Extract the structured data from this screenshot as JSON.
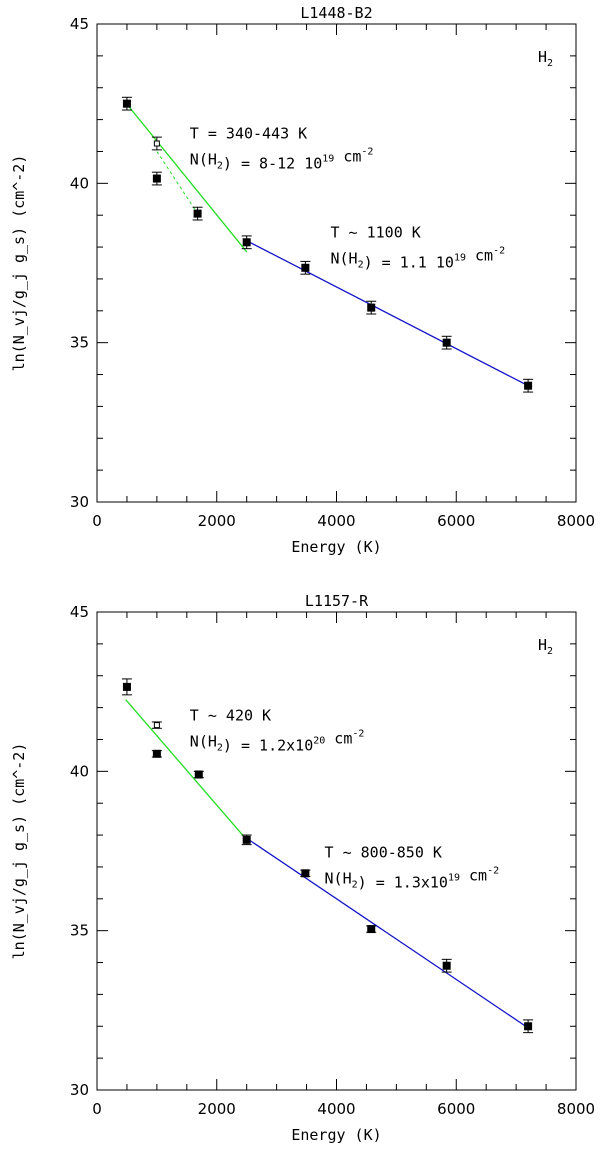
{
  "chart_data": [
    {
      "type": "scatter",
      "title": "L1448-B2",
      "xlabel": "Energy (K)",
      "ylabel": "ln(N_vj/g_j g_s) (cm^-2)",
      "xlim": [
        0,
        8000
      ],
      "ylim": [
        30,
        45
      ],
      "xticks": [
        0,
        2000,
        4000,
        6000,
        8000
      ],
      "yticks": [
        30,
        35,
        40,
        45
      ],
      "xtick_labels": [
        "0",
        "2000",
        "4000",
        "6000",
        "8000"
      ],
      "ytick_labels": [
        "30",
        "35",
        "40",
        "45"
      ],
      "species": "H",
      "species_sub": "2",
      "points": [
        {
          "x": 500,
          "y": 42.5,
          "err": 0.2,
          "filled": true
        },
        {
          "x": 1000,
          "y": 41.25,
          "err": 0.2,
          "filled": false
        },
        {
          "x": 1000,
          "y": 40.15,
          "err": 0.2,
          "filled": true
        },
        {
          "x": 1680,
          "y": 39.05,
          "err": 0.2,
          "filled": true
        },
        {
          "x": 2500,
          "y": 38.15,
          "err": 0.2,
          "filled": true
        },
        {
          "x": 3480,
          "y": 37.35,
          "err": 0.2,
          "filled": true
        },
        {
          "x": 4580,
          "y": 36.1,
          "err": 0.2,
          "filled": true
        },
        {
          "x": 5840,
          "y": 35.0,
          "err": 0.2,
          "filled": true
        },
        {
          "x": 7200,
          "y": 33.65,
          "err": 0.2,
          "filled": true
        }
      ],
      "fits": [
        {
          "color": "#22dd22",
          "dashed": false,
          "x": [
            450,
            2500
          ],
          "y": [
            42.6,
            37.85
          ]
        },
        {
          "color": "#22dd22",
          "dashed": true,
          "x": [
            1000,
            1680
          ],
          "y": [
            41.0,
            39.05
          ]
        },
        {
          "color": "#1515c8",
          "dashed": false,
          "x": [
            2500,
            7200
          ],
          "y": [
            38.2,
            33.65
          ]
        }
      ],
      "annotations": [
        {
          "lines": [
            [
              "T = 340-443 K"
            ],
            [
              "N(H",
              {
                "sub": "2"
              },
              ") = 8-12 10",
              {
                "sup": "19"
              },
              " cm",
              {
                "sup": "-2"
              }
            ]
          ],
          "x": 1550,
          "y": 41.4
        },
        {
          "lines": [
            [
              "T ~ 1100 K"
            ],
            [
              "N(H",
              {
                "sub": "2"
              },
              ") = 1.1 10",
              {
                "sup": "19"
              },
              " cm",
              {
                "sup": "-2"
              }
            ]
          ],
          "x": 3900,
          "y": 38.3
        }
      ]
    },
    {
      "type": "scatter",
      "title": "L1157-R",
      "xlabel": "Energy (K)",
      "ylabel": "ln(N_vj/g_j g_s) (cm^-2)",
      "xlim": [
        0,
        8000
      ],
      "ylim": [
        30,
        45
      ],
      "xticks": [
        0,
        2000,
        4000,
        6000,
        8000
      ],
      "yticks": [
        30,
        35,
        40,
        45
      ],
      "xtick_labels": [
        "0",
        "2000",
        "4000",
        "6000",
        "8000"
      ],
      "ytick_labels": [
        "30",
        "35",
        "40",
        "45"
      ],
      "species": "H",
      "species_sub": "2",
      "points": [
        {
          "x": 500,
          "y": 42.65,
          "err": 0.25,
          "filled": true
        },
        {
          "x": 1000,
          "y": 41.45,
          "err": 0.1,
          "filled": false
        },
        {
          "x": 1000,
          "y": 40.55,
          "err": 0.1,
          "filled": true
        },
        {
          "x": 1700,
          "y": 39.9,
          "err": 0.1,
          "filled": true
        },
        {
          "x": 2500,
          "y": 37.85,
          "err": 0.15,
          "filled": true
        },
        {
          "x": 3480,
          "y": 36.8,
          "err": 0.1,
          "filled": true
        },
        {
          "x": 4580,
          "y": 35.05,
          "err": 0.1,
          "filled": true
        },
        {
          "x": 5840,
          "y": 33.9,
          "err": 0.2,
          "filled": true
        },
        {
          "x": 7200,
          "y": 32.0,
          "err": 0.2,
          "filled": true
        }
      ],
      "fits": [
        {
          "color": "#22dd22",
          "dashed": false,
          "x": [
            480,
            2500
          ],
          "y": [
            42.25,
            37.85
          ]
        },
        {
          "color": "#1515c8",
          "dashed": false,
          "x": [
            2500,
            7200
          ],
          "y": [
            37.9,
            31.95
          ]
        }
      ],
      "annotations": [
        {
          "lines": [
            [
              "T ~ 420 K"
            ],
            [
              "N(H",
              {
                "sub": "2"
              },
              ") = 1.2x10",
              {
                "sup": "20"
              },
              " cm",
              {
                "sup": "-2"
              }
            ]
          ],
          "x": 1550,
          "y": 41.6
        },
        {
          "lines": [
            [
              "T ~ 800-850 K"
            ],
            [
              "N(H",
              {
                "sub": "2"
              },
              ") = 1.3x10",
              {
                "sup": "19"
              },
              " cm",
              {
                "sup": "-2"
              }
            ]
          ],
          "x": 3800,
          "y": 37.3
        }
      ]
    }
  ]
}
